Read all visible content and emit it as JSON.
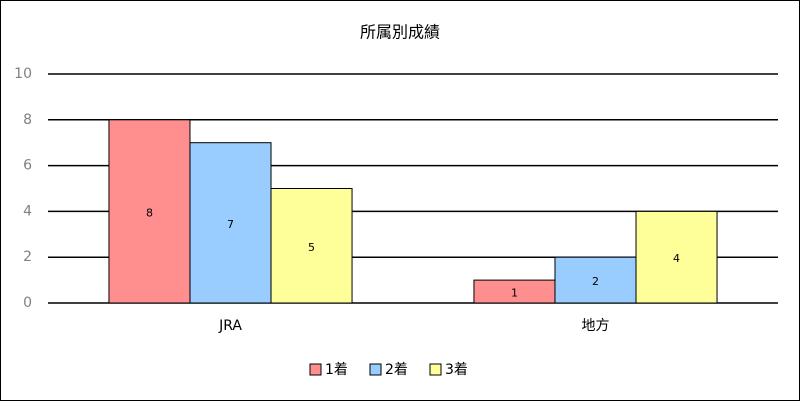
{
  "chart_data": {
    "type": "bar",
    "title": "所属別成績",
    "categories": [
      "JRA",
      "地方"
    ],
    "series": [
      {
        "name": "1着",
        "color": "#ff8f8f",
        "values": [
          8,
          1
        ]
      },
      {
        "name": "2着",
        "color": "#99ccff",
        "values": [
          7,
          2
        ]
      },
      {
        "name": "3着",
        "color": "#ffff99",
        "values": [
          5,
          4
        ]
      }
    ],
    "ylim": [
      0,
      10
    ],
    "yticks": [
      0,
      2,
      4,
      6,
      8,
      10
    ],
    "grid": true,
    "legend": "bottom"
  }
}
